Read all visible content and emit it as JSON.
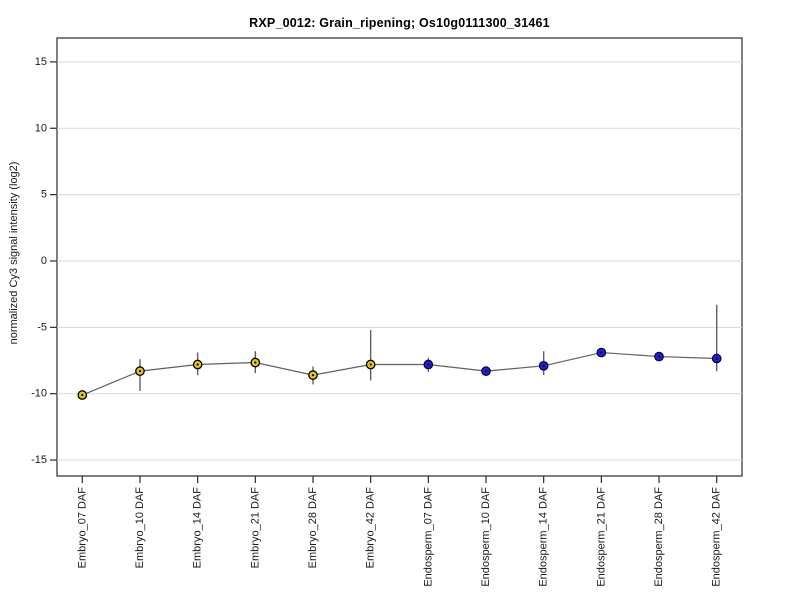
{
  "chart_data": {
    "type": "line",
    "title": "RXP_0012: Grain_ripening; Os10g0111300_31461",
    "ylabel": "normalized Cy3 signal intensity (log2)",
    "xlabel": "",
    "categories": [
      "Embryo_07 DAF",
      "Embryo_10 DAF",
      "Embryo_14 DAF",
      "Embryo_21 DAF",
      "Embryo_28 DAF",
      "Embryo_42 DAF",
      "Endosperm_07 DAF",
      "Endosperm_10 DAF",
      "Endosperm_14 DAF",
      "Endosperm_21 DAF",
      "Endosperm_28 DAF",
      "Endosperm_42 DAF"
    ],
    "series": [
      {
        "name": "Embryo",
        "marker_fill": "#E8C51D",
        "marker_edge": "#000000"
      },
      {
        "name": "Endosperm",
        "marker_fill": "#2323C8",
        "marker_edge": "#000050"
      }
    ],
    "point_series": [
      0,
      0,
      0,
      0,
      0,
      0,
      1,
      1,
      1,
      1,
      1,
      1
    ],
    "values": [
      -10.1,
      -8.3,
      -7.8,
      -7.65,
      -8.6,
      -7.8,
      -7.8,
      -8.3,
      -7.9,
      -6.9,
      -7.2,
      -7.35
    ],
    "error_upper": [
      -10.1,
      -7.4,
      -6.9,
      -6.8,
      -7.95,
      -5.2,
      -7.3,
      -8.3,
      -6.8,
      -6.75,
      -7.05,
      -3.3
    ],
    "error_lower": [
      -10.1,
      -9.8,
      -8.6,
      -8.45,
      -9.3,
      -9.0,
      -8.35,
      -8.3,
      -8.6,
      -7.05,
      -7.35,
      -8.3
    ],
    "yticks": [
      -15,
      -10,
      -5,
      0,
      5,
      10,
      15
    ],
    "ylim": [
      -16.2,
      16.8
    ],
    "grid": "horizontal",
    "legend": "none",
    "colors": {
      "line": "#606060",
      "error_bar": "#606060",
      "grid": "#d9d9d9",
      "plot_border": "#2b2b2b",
      "tick": "#2b2b2b",
      "tick_label": "#1a1a1a",
      "background": "#ffffff"
    }
  }
}
